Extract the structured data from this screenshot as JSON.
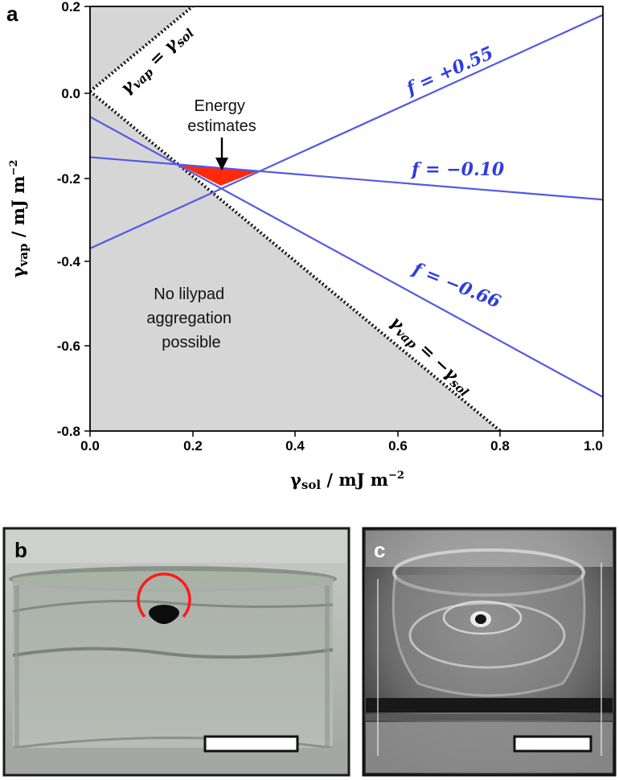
{
  "panel_labels": {
    "a": "a",
    "b": "b",
    "c": "c"
  },
  "colors": {
    "line_blue": "#5558e6",
    "label_blue": "#2e3de0",
    "shade": "#d6d6d6",
    "triangle": "#ff2a0a",
    "circle": "#ff1a1a"
  },
  "chart_data": {
    "type": "line",
    "xlabel": {
      "sym": "γ",
      "sub": "sol",
      "unit": " / mJ m",
      "sup": "−2"
    },
    "ylabel": {
      "sym": "γ",
      "sub": "vap",
      "unit": " / mJ m",
      "sup": "−2"
    },
    "xlim": [
      0.0,
      1.0
    ],
    "ylim": [
      -0.8,
      0.2
    ],
    "xticks": [
      "0.0",
      "0.2",
      "0.4",
      "0.6",
      "0.8",
      "1.0"
    ],
    "yticks": [
      "0.2",
      "0.0",
      "-0.2",
      "-0.4",
      "-0.6",
      "-0.8"
    ],
    "grid": false,
    "shaded_region": "No lilypad aggregation possible",
    "boundary_lines": [
      {
        "name": "γvap = γsol",
        "x": [
          0.0,
          0.2
        ],
        "y": [
          0.0,
          0.2
        ],
        "style": "dotted"
      },
      {
        "name": "γvap = −γsol",
        "x": [
          0.0,
          0.8
        ],
        "y": [
          0.0,
          -0.8
        ],
        "style": "dotted"
      }
    ],
    "series": [
      {
        "name": "f = +0.55",
        "x": [
          0.0,
          1.0
        ],
        "y": [
          -0.37,
          0.18
        ]
      },
      {
        "name": "f = −0.10",
        "x": [
          0.0,
          1.0
        ],
        "y": [
          -0.155,
          -0.255
        ]
      },
      {
        "name": "f = −0.66",
        "x": [
          0.0,
          1.0
        ],
        "y": [
          -0.06,
          -0.72
        ]
      }
    ],
    "energy_estimates_region": {
      "x": [
        0.172,
        0.327,
        0.255
      ],
      "y": [
        -0.172,
        -0.188,
        -0.222
      ]
    }
  },
  "annotations": {
    "ident_pos": {
      "sym": "γ",
      "sub": "vap",
      "eq": " = γ",
      "sub2": "sol"
    },
    "ident_neg": {
      "sym": "γ",
      "sub": "vap",
      "eq": " = −γ",
      "sub2": "sol"
    },
    "f_pos": "f = +0.55",
    "f_mid": "f = −0.10",
    "f_neg": "f = −0.66",
    "energy_line1": "Energy",
    "energy_line2": "estimates",
    "no_agg_line1": "No lilypad",
    "no_agg_line2": "aggregation",
    "no_agg_line3": "possible"
  }
}
